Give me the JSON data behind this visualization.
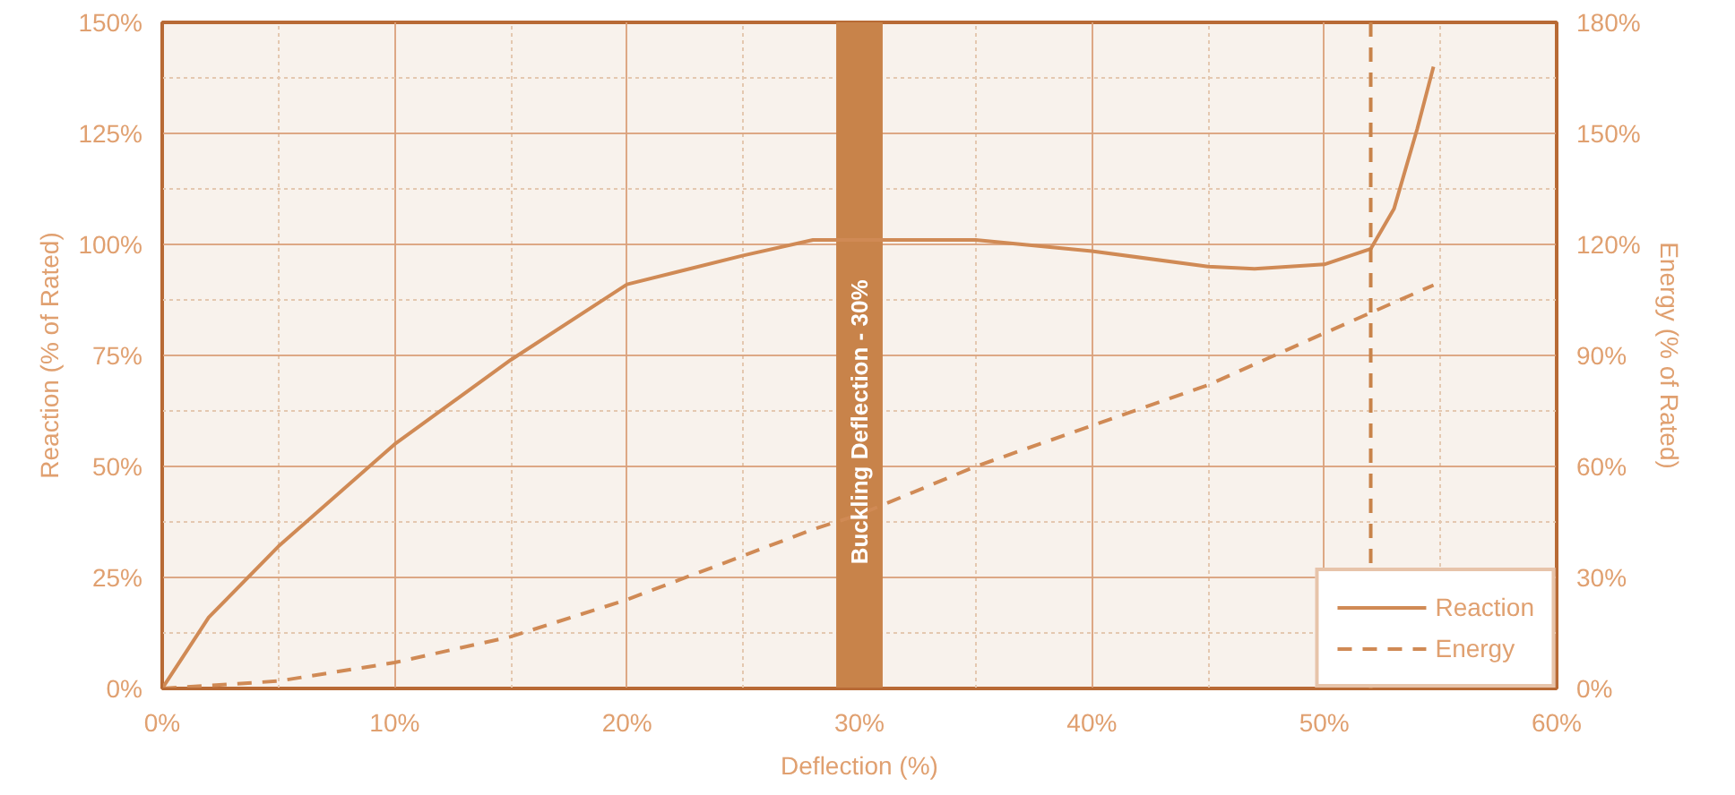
{
  "chart_data": {
    "type": "line",
    "xlabel": "Deflection (%)",
    "ylabel": "Reaction (% of Rated)",
    "y2label": "Energy (% of Rated)",
    "xlim": [
      0,
      60
    ],
    "xticks": [
      {
        "value": 0,
        "label": "0%"
      },
      {
        "value": 5,
        "label": null
      },
      {
        "value": 10,
        "label": "10%"
      },
      {
        "value": 15,
        "label": null
      },
      {
        "value": 20,
        "label": "20%"
      },
      {
        "value": 25,
        "label": null
      },
      {
        "value": 30,
        "label": "30%"
      },
      {
        "value": 35,
        "label": null
      },
      {
        "value": 40,
        "label": "40%"
      },
      {
        "value": 45,
        "label": null
      },
      {
        "value": 50,
        "label": "50%"
      },
      {
        "value": 55,
        "label": null
      },
      {
        "value": 60,
        "label": "60%"
      }
    ],
    "ylim": [
      0,
      150
    ],
    "yticks": [
      {
        "value": 0,
        "label": "0%"
      },
      {
        "value": 12.5,
        "label": null
      },
      {
        "value": 25,
        "label": "25%"
      },
      {
        "value": 37.5,
        "label": null
      },
      {
        "value": 50,
        "label": "50%"
      },
      {
        "value": 62.5,
        "label": null
      },
      {
        "value": 75,
        "label": "75%"
      },
      {
        "value": 87.5,
        "label": null
      },
      {
        "value": 100,
        "label": "100%"
      },
      {
        "value": 112.5,
        "label": null
      },
      {
        "value": 125,
        "label": "125%"
      },
      {
        "value": 137.5,
        "label": null
      },
      {
        "value": 150,
        "label": "150%"
      }
    ],
    "y2lim": [
      0,
      180
    ],
    "y2ticks": [
      {
        "value": 0,
        "label": "0%"
      },
      {
        "value": 30,
        "label": "30%"
      },
      {
        "value": 60,
        "label": "60%"
      },
      {
        "value": 90,
        "label": "90%"
      },
      {
        "value": 120,
        "label": "120%"
      },
      {
        "value": 150,
        "label": "150%"
      },
      {
        "value": 180,
        "label": "180%"
      }
    ],
    "grid": true,
    "legend": "bottom right",
    "series": [
      {
        "name": "Reaction",
        "color": "#d08a55",
        "line_style": "solid",
        "x": [
          0,
          1,
          2,
          5,
          10,
          15,
          20,
          25,
          28,
          30,
          35,
          40,
          45,
          47,
          50,
          52,
          53,
          54,
          54.7
        ],
        "values": [
          0,
          8,
          16,
          32,
          55,
          74,
          91,
          97.5,
          101,
          101,
          101,
          98.5,
          95,
          94.5,
          95.5,
          99,
          108,
          126,
          140
        ]
      },
      {
        "name": "Energy",
        "color": "#d08a55",
        "line_style": "dashed",
        "axis": "y2",
        "x": [
          0,
          5,
          10,
          15,
          20,
          28,
          30,
          35,
          40,
          45,
          50,
          54.7
        ],
        "values": [
          0,
          2,
          7,
          14,
          24,
          43,
          47,
          60,
          71,
          82,
          96,
          109
        ]
      }
    ],
    "bands": [
      {
        "axis": "x",
        "from": 29,
        "to": 31,
        "label": "Buckling Deflection - 30%",
        "color": "#c8834a"
      }
    ],
    "ref_lines": [
      {
        "axis": "x",
        "value": 52,
        "label": null,
        "color": "#c8834a",
        "line_style": "dashed"
      }
    ]
  }
}
